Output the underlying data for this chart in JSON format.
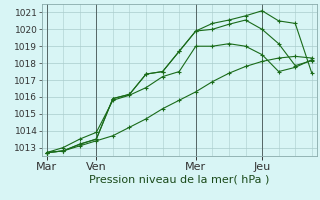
{
  "title": "Pression niveau de la mer( hPa )",
  "bg_color": "#cceaea",
  "plot_bg_color": "#d8f5f5",
  "grid_color": "#aacccc",
  "line_color": "#1a6b1a",
  "vline_color": "#556666",
  "ylim": [
    1012.5,
    1021.5
  ],
  "yticks": [
    1013,
    1014,
    1015,
    1016,
    1017,
    1018,
    1019,
    1020,
    1021
  ],
  "day_labels": [
    "Mar",
    "Ven",
    "Mer",
    "Jeu"
  ],
  "day_positions": [
    0,
    3,
    9,
    13
  ],
  "vline_positions": [
    0,
    3,
    9,
    13
  ],
  "series": [
    [
      1012.7,
      1012.8,
      1013.1,
      1013.4,
      1013.7,
      1014.2,
      1014.7,
      1015.3,
      1015.8,
      1016.3,
      1016.9,
      1017.4,
      1017.8,
      1018.1,
      1018.3,
      1018.4,
      1018.3
    ],
    [
      1012.7,
      1013.0,
      1013.5,
      1013.9,
      1015.8,
      1016.1,
      1016.55,
      1017.2,
      1017.5,
      1019.0,
      1019.0,
      1019.15,
      1019.0,
      1018.5,
      1017.5,
      1017.75,
      1018.2
    ],
    [
      1012.7,
      1012.8,
      1013.2,
      1013.5,
      1015.9,
      1016.15,
      1017.35,
      1017.5,
      1018.7,
      1019.9,
      1020.0,
      1020.3,
      1020.55,
      1020.0,
      1019.15,
      1017.85,
      1018.15
    ],
    [
      1012.7,
      1012.8,
      1013.2,
      1013.5,
      1015.9,
      1016.15,
      1017.35,
      1017.5,
      1018.7,
      1019.9,
      1020.35,
      1020.55,
      1020.8,
      1021.1,
      1020.5,
      1020.35,
      1017.4
    ]
  ],
  "xlim": [
    -0.3,
    16.3
  ],
  "n_points": 17,
  "xlabel_fontsize": 8.0,
  "ylabel_fontsize": 6.5,
  "title_fontsize": 8.0
}
